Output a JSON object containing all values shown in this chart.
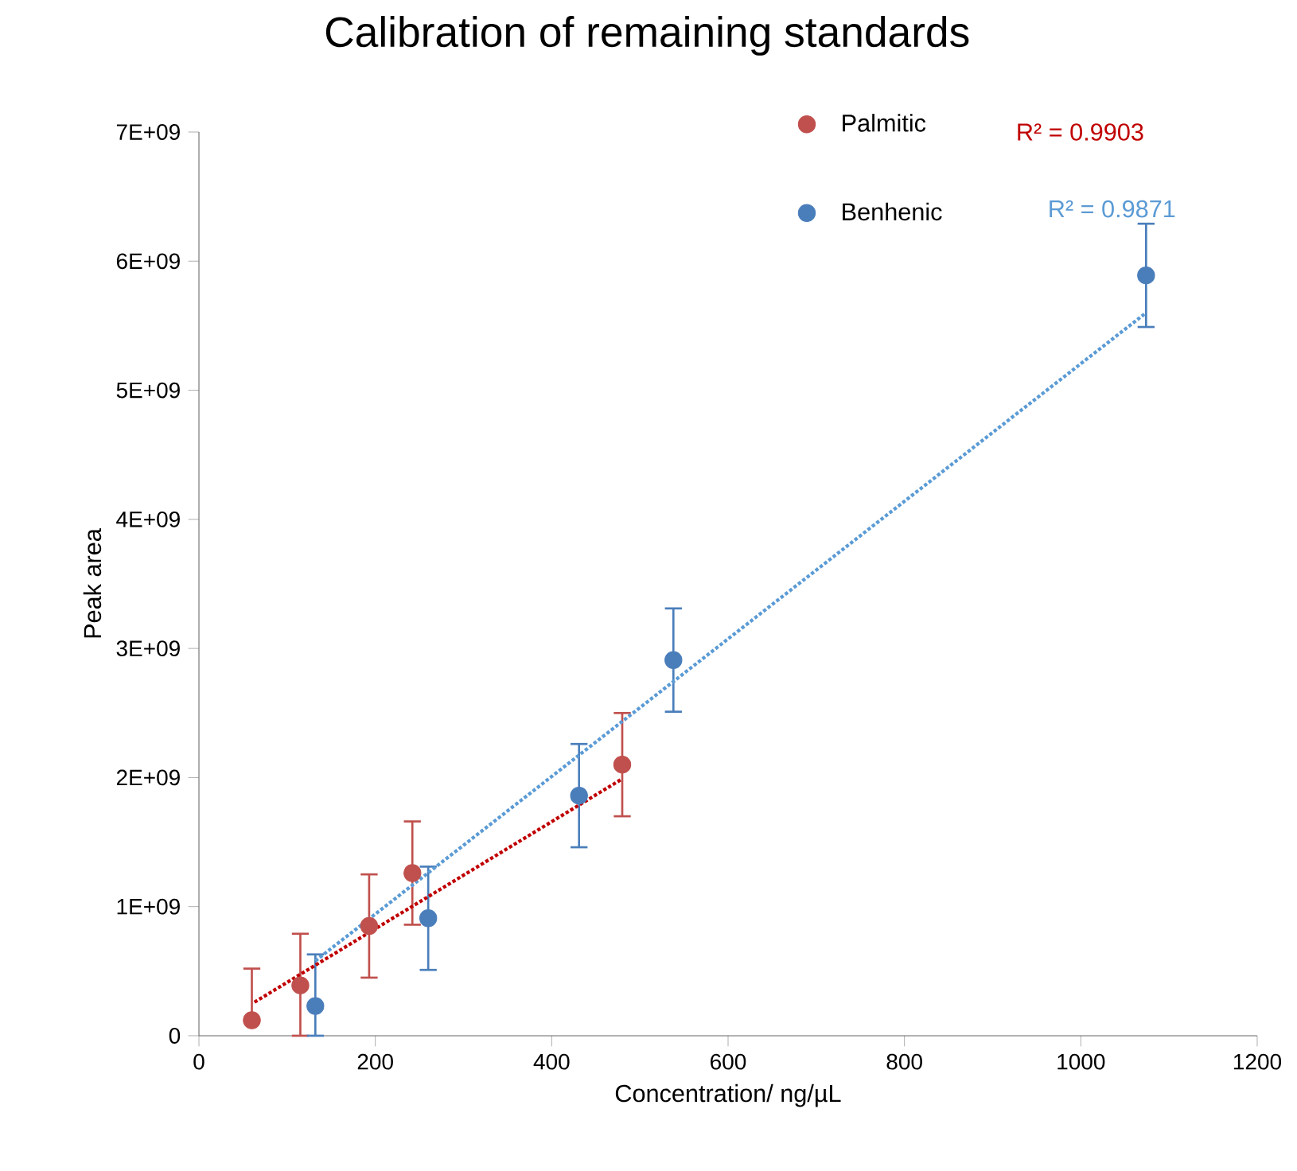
{
  "chart_data": {
    "type": "scatter",
    "title": "Calibration of remaining standards",
    "xlabel": "Concentration/ ng/µL",
    "ylabel": "Peak area",
    "xlim": [
      0,
      1200
    ],
    "xticks": [
      0,
      200,
      400,
      600,
      800,
      1000,
      1200
    ],
    "ylim": [
      0,
      7000000000
    ],
    "yticks": [
      0,
      {
        "value": 1000000000,
        "label": "1E+09"
      },
      {
        "value": 2000000000,
        "label": "2E+09"
      },
      {
        "value": 3000000000,
        "label": "3E+09"
      },
      {
        "value": 4000000000,
        "label": "4E+09"
      },
      {
        "value": 5000000000,
        "label": "5E+09"
      },
      {
        "value": 6000000000,
        "label": "6E+09"
      },
      {
        "value": 7000000000,
        "label": "7E+09"
      }
    ],
    "grid": false,
    "legend": "top right",
    "marker": "circle",
    "series": [
      {
        "name": "Palmitic",
        "color": "#c0504d",
        "x": [
          60,
          115,
          193,
          242,
          480
        ],
        "values": [
          120000000,
          390000000,
          850000000,
          1260000000,
          2100000000
        ],
        "errors": [
          [
            120000000,
            520000000
          ],
          [
            0,
            790000000
          ],
          400000000,
          400000000,
          400000000
        ]
      },
      {
        "name": "Benhenic",
        "color": "#4a7ebb",
        "x": [
          132,
          260,
          431,
          538,
          1074
        ],
        "values": [
          230000000,
          910000000,
          1860000000,
          2910000000,
          5890000000
        ],
        "errors": [
          [
            0,
            630000000
          ],
          400000000,
          400000000,
          400000000,
          400000000
        ]
      },
      {
        "name": "R² = 0.9903",
        "type": "line",
        "color": "#c00000",
        "line_style": "dotted",
        "marker": "none",
        "x": [
          63,
          480
        ],
        "values": [
          260000000,
          1990000000
        ]
      },
      {
        "name": "R² = 0.9871",
        "type": "line",
        "color": "#5b9bd5",
        "line_style": "dotted",
        "marker": "none",
        "x": [
          132,
          1074
        ],
        "values": [
          580000000,
          5600000000
        ]
      }
    ]
  }
}
